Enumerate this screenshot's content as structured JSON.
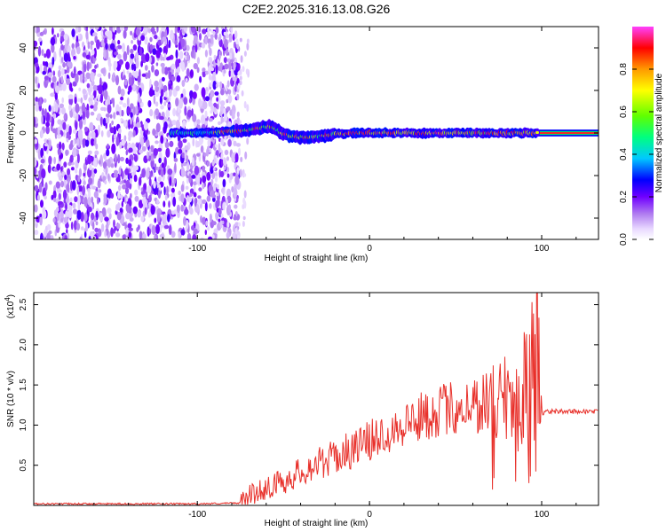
{
  "title": "C2E2.2025.316.13.08.G26",
  "chart_data": [
    {
      "type": "heatmap",
      "name": "spectrogram",
      "xlabel": "Height of straight line (km)",
      "ylabel": "Frequency (Hz)",
      "xlim": [
        -195,
        133
      ],
      "ylim": [
        -50,
        50
      ],
      "xticks": [
        -100,
        0,
        100
      ],
      "yticks": [
        -40,
        -20,
        0,
        20,
        40
      ],
      "noise_region_x": [
        -195,
        -80
      ],
      "signal_track": {
        "x": [
          -115,
          -95,
          -85,
          -75,
          -68,
          -62,
          -58,
          -54,
          -50,
          -45,
          -40,
          -35,
          -30,
          -20,
          -10,
          0,
          20,
          40,
          60,
          80,
          95,
          100,
          133
        ],
        "freq": [
          0,
          0,
          0.5,
          1,
          1.5,
          2.5,
          3,
          1.5,
          -0.5,
          -1.5,
          -2,
          -2,
          -1.5,
          -0.5,
          0,
          0,
          0,
          0,
          0,
          0,
          0,
          0,
          0
        ]
      },
      "colorbar": {
        "label": "Normalized spectral amplitude",
        "ticks": [
          0.0,
          0.2,
          0.4,
          0.6,
          0.8
        ],
        "tick_labels": [
          "0.0",
          "0.2",
          "0.4",
          "0.6",
          "0.8"
        ],
        "range": [
          0,
          1
        ]
      }
    },
    {
      "type": "line",
      "name": "snr",
      "xlabel": "Height of straight line (km)",
      "ylabel": "SNR (10 * v/v)",
      "scale_label": "(x10",
      "scale_exp": "4",
      "scale_close": ")",
      "xlim": [
        -195,
        133
      ],
      "ylim": [
        0,
        2.65
      ],
      "xticks": [
        -100,
        0,
        100
      ],
      "yticks": [
        0.5,
        1.0,
        1.5,
        2.0,
        2.5
      ],
      "ytick_labels": [
        "0.5",
        "1.0",
        "1.5",
        "2.0",
        "2.5"
      ],
      "color": "#e8302a",
      "trend": {
        "x": [
          -195,
          -100,
          -75,
          -70,
          -60,
          -50,
          -40,
          -30,
          -20,
          -10,
          0,
          10,
          20,
          30,
          40,
          50,
          60,
          70,
          80,
          90,
          95,
          100,
          103,
          133
        ],
        "y": [
          0.02,
          0.02,
          0.03,
          0.12,
          0.22,
          0.3,
          0.42,
          0.52,
          0.6,
          0.7,
          0.8,
          0.92,
          1.02,
          1.1,
          1.18,
          1.22,
          1.26,
          1.3,
          1.35,
          1.4,
          1.45,
          1.15,
          1.17,
          1.17
        ]
      }
    }
  ]
}
